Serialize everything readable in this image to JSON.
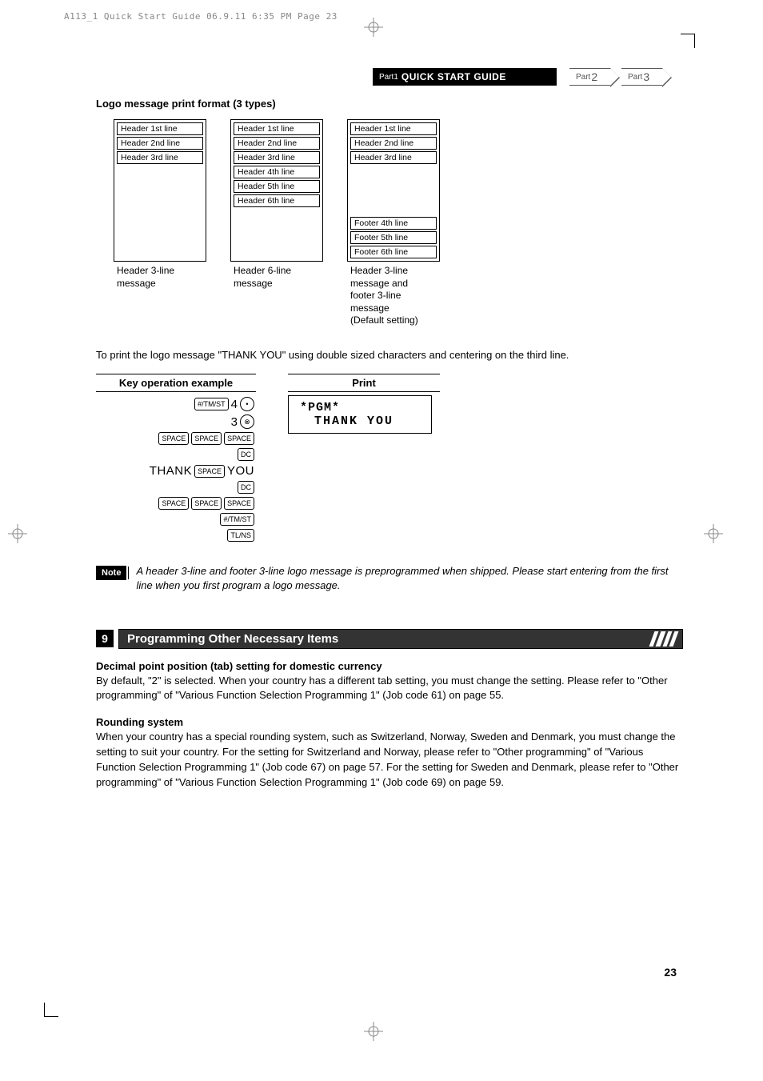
{
  "page_header": "A113_1 Quick Start Guide  06.9.11 6:35 PM  Page 23",
  "tabs": {
    "part1_label": "Part1",
    "part1_title": "QUICK START GUIDE",
    "part2": "Part",
    "part2_num": "2",
    "part3": "Part",
    "part3_num": "3"
  },
  "logo_section": {
    "heading": "Logo message print format (3 types)",
    "fmt1": {
      "lines": [
        "Header 1st line",
        "Header 2nd line",
        "Header 3rd line"
      ],
      "caption": "Header 3-line\nmessage"
    },
    "fmt2": {
      "lines": [
        "Header 1st line",
        "Header 2nd line",
        "Header 3rd line",
        "Header 4th line",
        "Header 5th line",
        "Header 6th line"
      ],
      "caption": "Header 6-line\nmessage"
    },
    "fmt3": {
      "top_lines": [
        "Header 1st line",
        "Header 2nd line",
        "Header 3rd line"
      ],
      "bottom_lines": [
        "Footer 4th line",
        "Footer 5th line",
        "Footer 6th line"
      ],
      "caption": "Header 3-line\nmessage and\nfooter 3-line\nmessage\n(Default setting)"
    },
    "intro_text": "To print the logo message \"THANK YOU\" using double sized characters and centering on the third line."
  },
  "example": {
    "col1_head": "Key operation example",
    "col2_head": "Print",
    "keys": {
      "tmst": "#/TM/ST",
      "space": "SPACE",
      "dc": "DC",
      "tlns": "TL/NS",
      "num4": "4",
      "num3": "3",
      "dot": "•",
      "x": "⊗",
      "thank": "THANK",
      "you": "YOU"
    },
    "print": {
      "l1": "*PGM*",
      "l2": "THANK YOU"
    }
  },
  "note": {
    "label": "Note",
    "text": "A header 3-line and footer 3-line logo message is preprogrammed when shipped.  Please start entering from the first line when you first program a logo message."
  },
  "section9": {
    "num": "9",
    "title": "Programming Other Necessary Items",
    "p1_head": "Decimal point position (tab) setting for domestic currency",
    "p1_body": "By default, \"2\" is selected.  When your country has a different tab setting, you must change the setting.  Please refer to \"Other programming\" of \"Various Function Selection Programming 1\" (Job code 61) on page 55.",
    "p2_head": "Rounding system",
    "p2_body": "When your country has a special rounding system, such as Switzerland, Norway, Sweden and Denmark, you must change the setting to suit your country. For the setting for Switzerland and Norway, please refer to \"Other programming\" of \"Various Function Selection Programming 1\" (Job code 67) on page 57.  For the setting for Sweden and Denmark, please refer to \"Other programming\" of \"Various Function Selection Programming 1\" (Job code 69) on page 59."
  },
  "page_number": "23"
}
